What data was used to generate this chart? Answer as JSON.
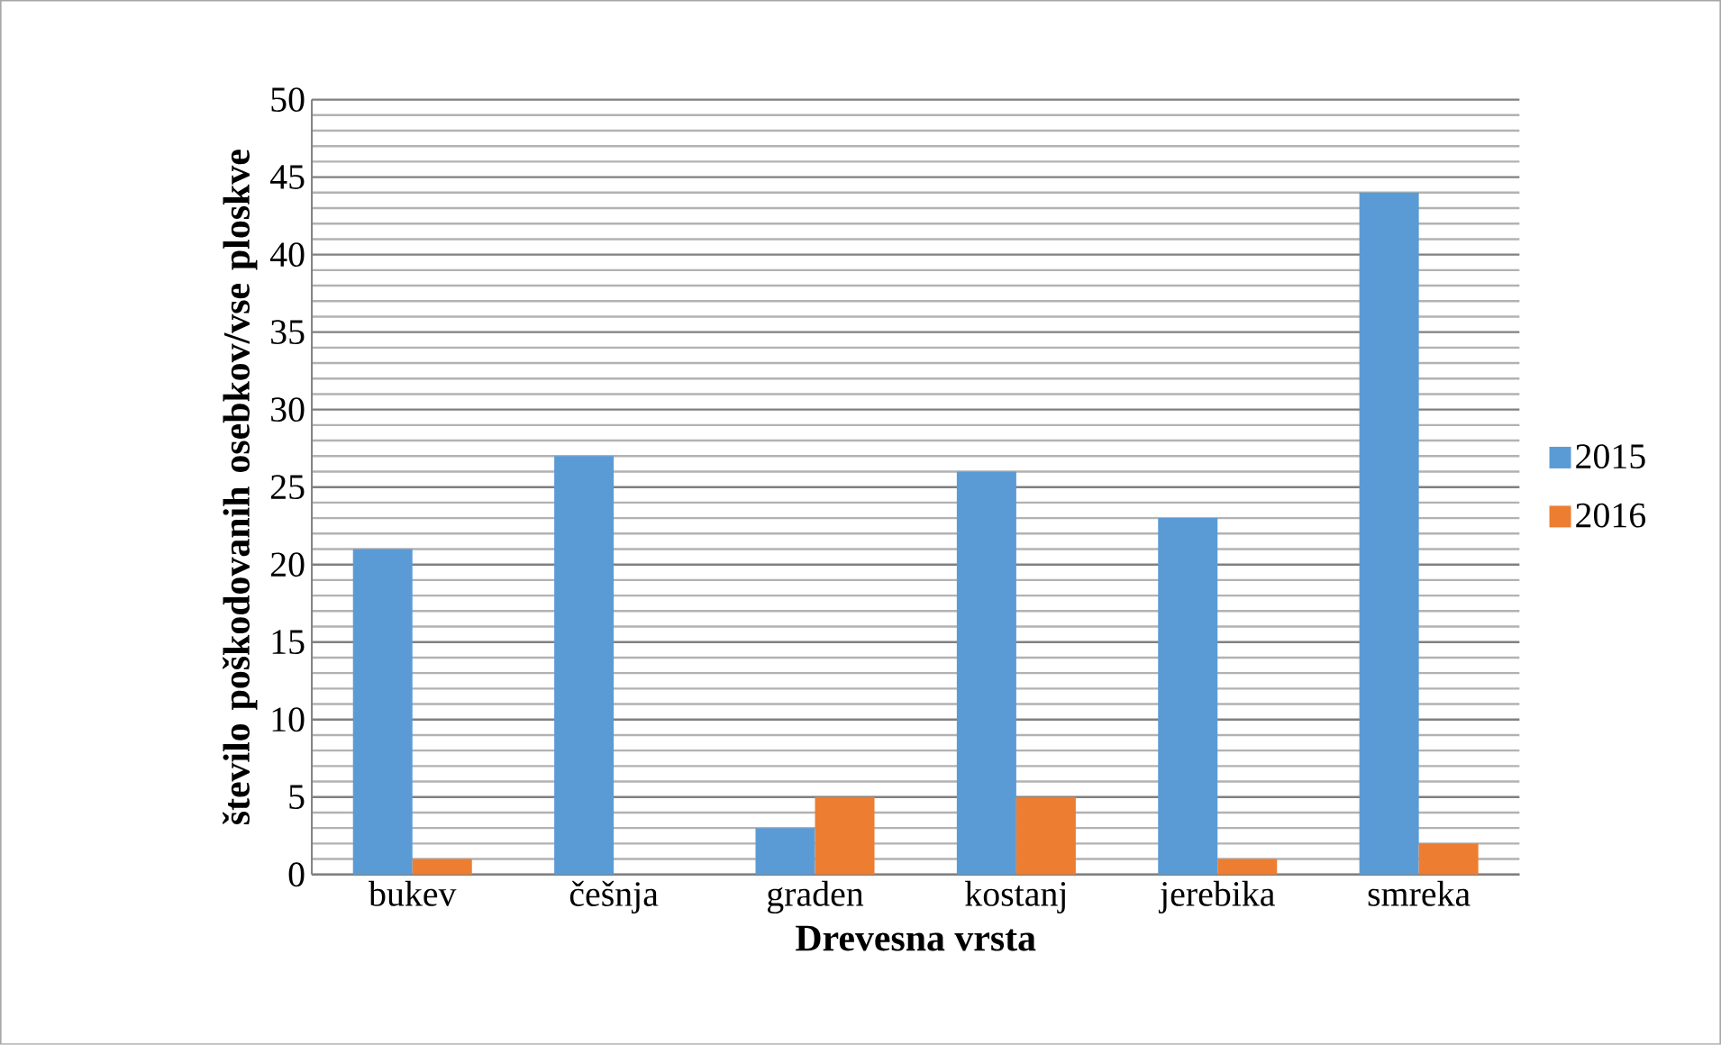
{
  "chart_data": {
    "type": "bar",
    "xlabel": "Drevesna vrsta",
    "ylabel": "število poškodovanih osebkov/vse ploskve",
    "categories": [
      "bukev",
      "češnja",
      "graden",
      "kostanj",
      "jerebika",
      "smreka"
    ],
    "series": [
      {
        "name": "2015",
        "color": "#5b9bd5",
        "values": [
          21,
          27,
          3,
          26,
          23,
          44
        ]
      },
      {
        "name": "2016",
        "color": "#ed7d31",
        "values": [
          1,
          null,
          5,
          5,
          1,
          2
        ]
      }
    ],
    "ylim": [
      0,
      50
    ],
    "yticks": [
      0,
      5,
      10,
      15,
      20,
      25,
      30,
      35,
      40,
      45,
      50
    ],
    "grid": "y",
    "legend": "right"
  }
}
